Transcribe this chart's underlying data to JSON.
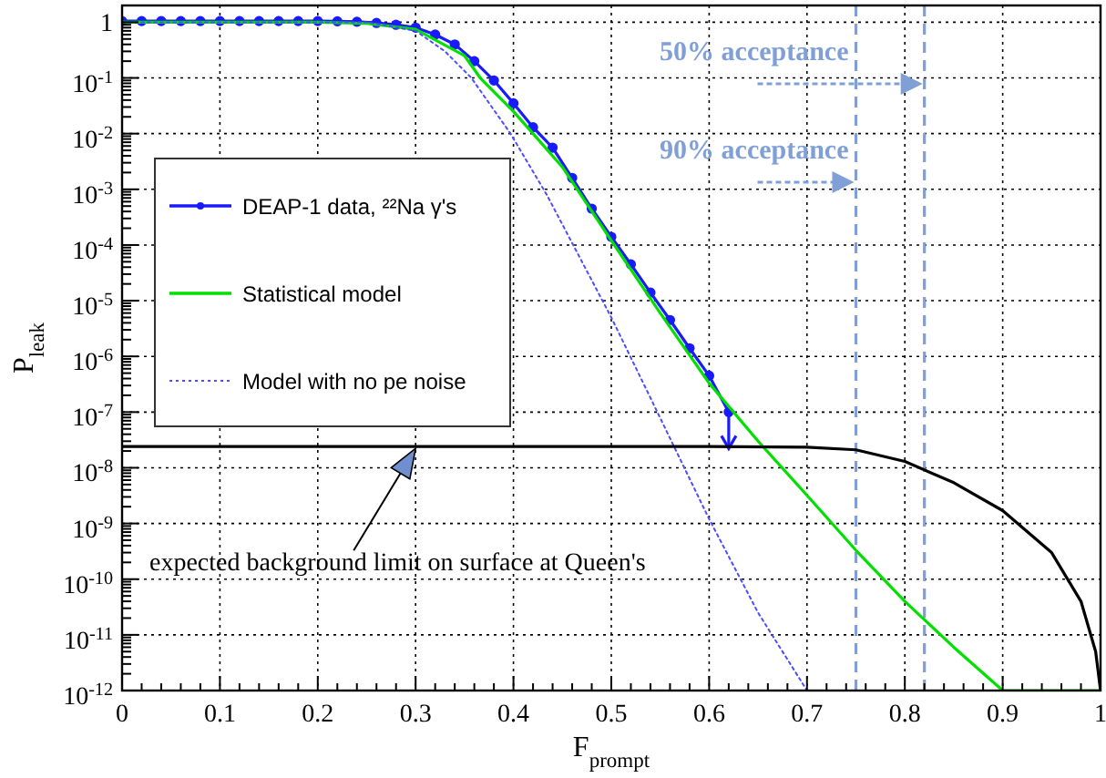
{
  "chart_data": {
    "type": "line",
    "xlabel": "F$_{prompt}$",
    "ylabel": "P$_{leak}$",
    "xlim": [
      0,
      1
    ],
    "xticks": [
      0,
      0.1,
      0.2,
      0.3,
      0.4,
      0.5,
      0.6,
      0.7,
      0.8,
      0.9,
      1
    ],
    "ylim": [
      1e-12,
      2
    ],
    "log": "y",
    "yticks": [
      {
        "value": 1,
        "label": "1"
      },
      {
        "value": 0.1,
        "label": "10$^{-1}$"
      },
      {
        "value": 0.01,
        "label": "10$^{-2}$"
      },
      {
        "value": 0.001,
        "label": "10$^{-3}$"
      },
      {
        "value": 0.0001,
        "label": "10$^{-4}$"
      },
      {
        "value": 1e-05,
        "label": "10$^{-5}$"
      },
      {
        "value": 1e-06,
        "label": "10$^{-6}$"
      },
      {
        "value": 1e-07,
        "label": "10$^{-7}$"
      },
      {
        "value": 1e-08,
        "label": "10$^{-8}$"
      },
      {
        "value": 1e-09,
        "label": "10$^{-9}$"
      },
      {
        "value": 1e-10,
        "label": "10$^{-10}$"
      },
      {
        "value": 1e-11,
        "label": "10$^{-11}$"
      },
      {
        "value": 1e-12,
        "label": "10$^{-12}$"
      }
    ],
    "grid": true,
    "legend": "left",
    "series": [
      {
        "name": "DEAP-1 data, ²²Na γ's",
        "color": "#1a1aff",
        "marker": "circle",
        "line_style": "solid",
        "x": [
          0,
          0.02,
          0.04,
          0.06,
          0.08,
          0.1,
          0.12,
          0.14,
          0.16,
          0.18,
          0.2,
          0.22,
          0.24,
          0.26,
          0.28,
          0.3,
          0.32,
          0.34,
          0.36,
          0.38,
          0.4,
          0.42,
          0.44,
          0.46,
          0.48,
          0.5,
          0.52,
          0.54,
          0.56,
          0.58,
          0.6,
          0.62
        ],
        "values": [
          1.05,
          1.05,
          1.05,
          1.05,
          1.05,
          1.05,
          1.05,
          1.05,
          1.05,
          1.05,
          1.05,
          1.04,
          1.02,
          0.97,
          0.9,
          0.8,
          0.6,
          0.4,
          0.2,
          0.09,
          0.035,
          0.013,
          0.0056,
          0.0016,
          0.00045,
          0.00014,
          4.5e-05,
          1.4e-05,
          4.5e-06,
          1.4e-06,
          4.5e-07,
          1e-07
        ]
      },
      {
        "name": "Statistical model",
        "color": "#00e000",
        "marker": "none",
        "line_style": "solid",
        "x": [
          0,
          0.2,
          0.25,
          0.3,
          0.35,
          0.366,
          0.4,
          0.42,
          0.45,
          0.5,
          0.55,
          0.6,
          0.65,
          0.7,
          0.75,
          0.8,
          0.85,
          0.9,
          1
        ],
        "values": [
          1,
          1,
          0.95,
          0.75,
          0.25,
          0.1,
          0.025,
          0.01,
          0.0025,
          0.00012,
          6e-06,
          3.3e-07,
          3e-08,
          3.2e-09,
          3.3e-10,
          4e-11,
          6e-12,
          1e-12,
          1e-12
        ]
      },
      {
        "name": "Model with no pe noise",
        "color": "#4d4dff",
        "marker": "none",
        "line_style": "dotted",
        "x": [
          0,
          0.25,
          0.3,
          0.33,
          0.357,
          0.397,
          0.434,
          0.5,
          0.54,
          0.6,
          0.65,
          0.7
        ],
        "values": [
          1,
          1,
          0.7,
          0.3,
          0.1,
          0.01,
          0.0008,
          5e-06,
          1.8e-07,
          1.2e-09,
          2.5e-11,
          1e-12
        ]
      },
      {
        "color": "#000000",
        "marker": "none",
        "line_style": "solid",
        "x": [
          0,
          0.6,
          0.7,
          0.75,
          0.8,
          0.85,
          0.9,
          0.95,
          0.98,
          0.995,
          1
        ],
        "values": [
          2.4e-08,
          2.4e-08,
          2.35e-08,
          2.1e-08,
          1.3e-08,
          5.4e-09,
          1.7e-09,
          3e-10,
          4e-11,
          5e-12,
          1e-12
        ]
      }
    ],
    "ref_lines": [
      {
        "axis": "x",
        "value": 0.82,
        "label": "50% acceptance",
        "color": "#7f9fd6",
        "line_style": "dashed"
      },
      {
        "axis": "x",
        "value": 0.75,
        "label": "90% acceptance",
        "color": "#7f9fd6",
        "line_style": "dashed"
      }
    ],
    "annotations": [
      "expected background limit on surface at Queen's"
    ]
  }
}
